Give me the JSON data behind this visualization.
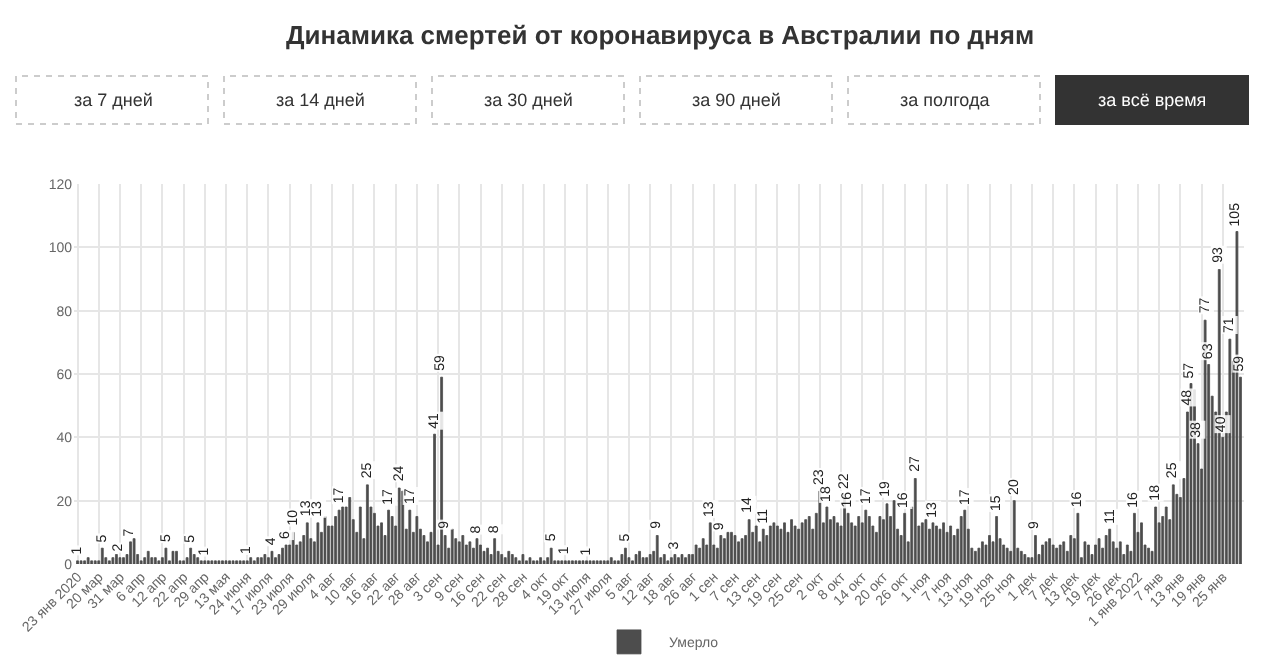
{
  "chart_data": {
    "type": "bar",
    "title": "Динамика смертей от коронавируса в Австралии по дням",
    "annotations": [
      "за 7 дней",
      "за 14 дней",
      "за 30 дней",
      "за 90 дней",
      "за полгода",
      "за всё время"
    ],
    "categories": [
      "23 янв 2020",
      null,
      null,
      null,
      null,
      null,
      "20 мар",
      null,
      null,
      null,
      null,
      null,
      "31 мар",
      null,
      null,
      null,
      null,
      null,
      "6 апр",
      null,
      null,
      null,
      null,
      null,
      "12 апр",
      null,
      null,
      null,
      null,
      null,
      "22 апр",
      null,
      null,
      null,
      null,
      null,
      "29 апр",
      null,
      null,
      null,
      null,
      null,
      "13 мая",
      null,
      null,
      null,
      null,
      null,
      "24 июня",
      null,
      null,
      null,
      null,
      null,
      "17 июля",
      null,
      null,
      null,
      null,
      null,
      "23 июля",
      null,
      null,
      null,
      null,
      null,
      "29 июля",
      null,
      null,
      null,
      null,
      null,
      "4 авг",
      null,
      null,
      null,
      null,
      null,
      "10 авг",
      null,
      null,
      null,
      null,
      null,
      "16 авг",
      null,
      null,
      null,
      null,
      null,
      "22 авг",
      null,
      null,
      null,
      null,
      null,
      "28 авг",
      null,
      null,
      null,
      null,
      null,
      "3 сен",
      null,
      null,
      null,
      null,
      null,
      "9 сен",
      null,
      null,
      null,
      null,
      null,
      "16 сен",
      null,
      null,
      null,
      null,
      null,
      "22 сен",
      null,
      null,
      null,
      null,
      null,
      "28 сен",
      null,
      null,
      null,
      null,
      null,
      "4 окт",
      null,
      null,
      null,
      null,
      null,
      "19 окт",
      null,
      null,
      null,
      null,
      null,
      "13 июля",
      null,
      null,
      null,
      null,
      null,
      "27 июля",
      null,
      null,
      null,
      null,
      null,
      "5 авг",
      null,
      null,
      null,
      null,
      null,
      "12 авг",
      null,
      null,
      null,
      null,
      null,
      "18 авг",
      null,
      null,
      null,
      null,
      null,
      "26 авг",
      null,
      null,
      null,
      null,
      null,
      "1 сен",
      null,
      null,
      null,
      null,
      null,
      "7 сен",
      null,
      null,
      null,
      null,
      null,
      "13 сен",
      null,
      null,
      null,
      null,
      null,
      "19 сен",
      null,
      null,
      null,
      null,
      null,
      "25 сен",
      null,
      null,
      null,
      null,
      null,
      "2 окт",
      null,
      null,
      null,
      null,
      null,
      "8 окт",
      null,
      null,
      null,
      null,
      null,
      "14 окт",
      null,
      null,
      null,
      null,
      null,
      "20 окт",
      null,
      null,
      null,
      null,
      null,
      "26 окт",
      null,
      null,
      null,
      null,
      null,
      "1 ноя",
      null,
      null,
      null,
      null,
      null,
      "7 ноя",
      null,
      null,
      null,
      null,
      null,
      "13 ноя",
      null,
      null,
      null,
      null,
      null,
      "19 ноя",
      null,
      null,
      null,
      null,
      null,
      "25 ноя",
      null,
      null,
      null,
      null,
      null,
      "1 дек",
      null,
      null,
      null,
      null,
      null,
      "7 дек",
      null,
      null,
      null,
      null,
      null,
      "13 дек",
      null,
      null,
      null,
      null,
      null,
      "19 дек",
      null,
      null,
      null,
      null,
      null,
      "26 дек",
      null,
      null,
      null,
      null,
      null,
      "1 янв 2022",
      null,
      null,
      null,
      null,
      null,
      "7 янв",
      null,
      null,
      null,
      null,
      null,
      "13 янв",
      null,
      null,
      null,
      null,
      null,
      "19 янв",
      null,
      null,
      null,
      null,
      null,
      "25 янв",
      null,
      null,
      null,
      null,
      null
    ],
    "series": [
      {
        "name": "Умерло",
        "color": "#4d4d4d",
        "values": [
          1,
          1,
          1,
          2,
          1,
          1,
          1,
          5,
          2,
          1,
          2,
          3,
          2,
          2,
          3,
          7,
          8,
          3,
          1,
          2,
          4,
          2,
          2,
          1,
          2,
          5,
          1,
          4,
          4,
          1,
          1,
          2,
          5,
          3,
          2,
          1,
          1,
          1,
          1,
          1,
          1,
          1,
          1,
          1,
          1,
          1,
          1,
          1,
          1,
          2,
          1,
          2,
          2,
          3,
          2,
          4,
          2,
          3,
          5,
          6,
          6,
          10,
          6,
          7,
          9,
          13,
          8,
          7,
          13,
          10,
          15,
          12,
          12,
          15,
          17,
          18,
          18,
          21,
          14,
          10,
          18,
          8,
          25,
          18,
          16,
          12,
          13,
          9,
          17,
          15,
          12,
          24,
          23,
          11,
          17,
          10,
          15,
          11,
          9,
          7,
          10,
          41,
          6,
          59,
          9,
          5,
          11,
          8,
          7,
          9,
          6,
          7,
          5,
          8,
          6,
          4,
          5,
          3,
          8,
          4,
          3,
          2,
          4,
          3,
          2,
          1,
          3,
          1,
          2,
          1,
          1,
          2,
          1,
          2,
          5,
          1,
          1,
          1,
          1,
          1,
          1,
          1,
          1,
          1,
          1,
          1,
          1,
          1,
          1,
          1,
          1,
          2,
          1,
          1,
          3,
          5,
          2,
          1,
          3,
          4,
          2,
          2,
          3,
          4,
          9,
          2,
          3,
          1,
          2,
          3,
          2,
          3,
          2,
          3,
          3,
          6,
          5,
          8,
          6,
          13,
          6,
          5,
          9,
          8,
          10,
          10,
          9,
          7,
          8,
          9,
          14,
          10,
          12,
          7,
          11,
          9,
          12,
          13,
          12,
          11,
          13,
          10,
          14,
          12,
          11,
          13,
          14,
          15,
          11,
          16,
          23,
          13,
          18,
          14,
          15,
          13,
          12,
          22,
          16,
          13,
          12,
          15,
          13,
          17,
          15,
          12,
          10,
          15,
          14,
          19,
          15,
          20,
          11,
          9,
          16,
          7,
          18,
          27,
          12,
          13,
          14,
          11,
          13,
          12,
          11,
          13,
          10,
          12,
          9,
          11,
          15,
          17,
          11,
          5,
          4,
          5,
          7,
          6,
          9,
          7,
          15,
          8,
          6,
          5,
          4,
          20,
          5,
          4,
          3,
          2,
          2,
          9,
          3,
          6,
          7,
          8,
          6,
          5,
          6,
          7,
          4,
          9,
          8,
          16,
          2,
          7,
          6,
          3,
          6,
          8,
          5,
          9,
          11,
          7,
          5,
          7,
          3,
          6,
          4,
          16,
          10,
          13,
          6,
          5,
          4,
          18,
          13,
          15,
          18,
          14,
          25,
          22,
          21,
          27,
          48,
          57,
          55,
          38,
          30,
          77,
          63,
          53,
          48,
          93,
          40,
          48,
          71,
          64,
          105,
          59
        ],
        "value_labels": [
          "1",
          null,
          null,
          null,
          null,
          null,
          null,
          "5",
          null,
          null,
          null,
          null,
          "2",
          null,
          null,
          "7",
          null,
          null,
          null,
          null,
          null,
          null,
          null,
          null,
          null,
          "5",
          null,
          null,
          null,
          null,
          null,
          null,
          "5",
          null,
          null,
          null,
          "1",
          null,
          null,
          null,
          null,
          null,
          null,
          null,
          null,
          null,
          null,
          null,
          "1",
          null,
          null,
          null,
          null,
          null,
          null,
          "4",
          null,
          null,
          null,
          "6",
          null,
          "10",
          null,
          null,
          null,
          "13",
          null,
          null,
          "13",
          null,
          null,
          null,
          null,
          null,
          "17",
          null,
          null,
          null,
          null,
          null,
          null,
          null,
          "25",
          null,
          null,
          null,
          null,
          null,
          "17",
          null,
          null,
          "24",
          null,
          null,
          "17",
          null,
          null,
          null,
          null,
          null,
          null,
          "41",
          null,
          "59",
          "9",
          null,
          null,
          null,
          null,
          null,
          null,
          null,
          null,
          "8",
          null,
          null,
          null,
          null,
          "8",
          null,
          null,
          null,
          null,
          null,
          null,
          null,
          null,
          null,
          null,
          null,
          null,
          null,
          null,
          null,
          "5",
          null,
          null,
          null,
          "1",
          null,
          null,
          null,
          null,
          null,
          "1",
          null,
          null,
          null,
          null,
          null,
          null,
          null,
          null,
          null,
          null,
          "5",
          null,
          null,
          null,
          null,
          null,
          null,
          null,
          null,
          "9",
          null,
          null,
          null,
          null,
          "3",
          null,
          null,
          null,
          null,
          null,
          null,
          null,
          null,
          null,
          "13",
          null,
          null,
          "9",
          null,
          null,
          null,
          null,
          null,
          null,
          null,
          "14",
          null,
          null,
          null,
          "11",
          null,
          null,
          null,
          null,
          null,
          null,
          null,
          null,
          null,
          null,
          null,
          null,
          null,
          null,
          null,
          "23",
          null,
          "18",
          null,
          null,
          null,
          null,
          "22",
          "16",
          null,
          null,
          null,
          null,
          "17",
          null,
          null,
          null,
          null,
          null,
          "19",
          null,
          null,
          null,
          null,
          "16",
          null,
          null,
          "27",
          null,
          null,
          null,
          null,
          "13",
          null,
          null,
          null,
          null,
          null,
          null,
          null,
          null,
          "17",
          null,
          null,
          null,
          null,
          null,
          null,
          null,
          null,
          "15",
          null,
          null,
          null,
          null,
          "20",
          null,
          null,
          null,
          null,
          null,
          "9",
          null,
          null,
          null,
          null,
          null,
          null,
          null,
          null,
          null,
          null,
          null,
          "16",
          null,
          null,
          null,
          null,
          null,
          null,
          null,
          null,
          "11",
          null,
          null,
          null,
          null,
          null,
          null,
          "16",
          null,
          null,
          null,
          null,
          null,
          "18",
          null,
          null,
          null,
          null,
          "25",
          null,
          null,
          null,
          "48",
          "57",
          null,
          "38",
          null,
          "77",
          "63",
          null,
          null,
          "93",
          "40",
          null,
          "71",
          null,
          "105",
          "59"
        ]
      }
    ],
    "ylim": [
      0,
      120
    ],
    "yticks": [
      0,
      20,
      40,
      60,
      80,
      100,
      120
    ],
    "grid": true,
    "legend": "bottom"
  }
}
